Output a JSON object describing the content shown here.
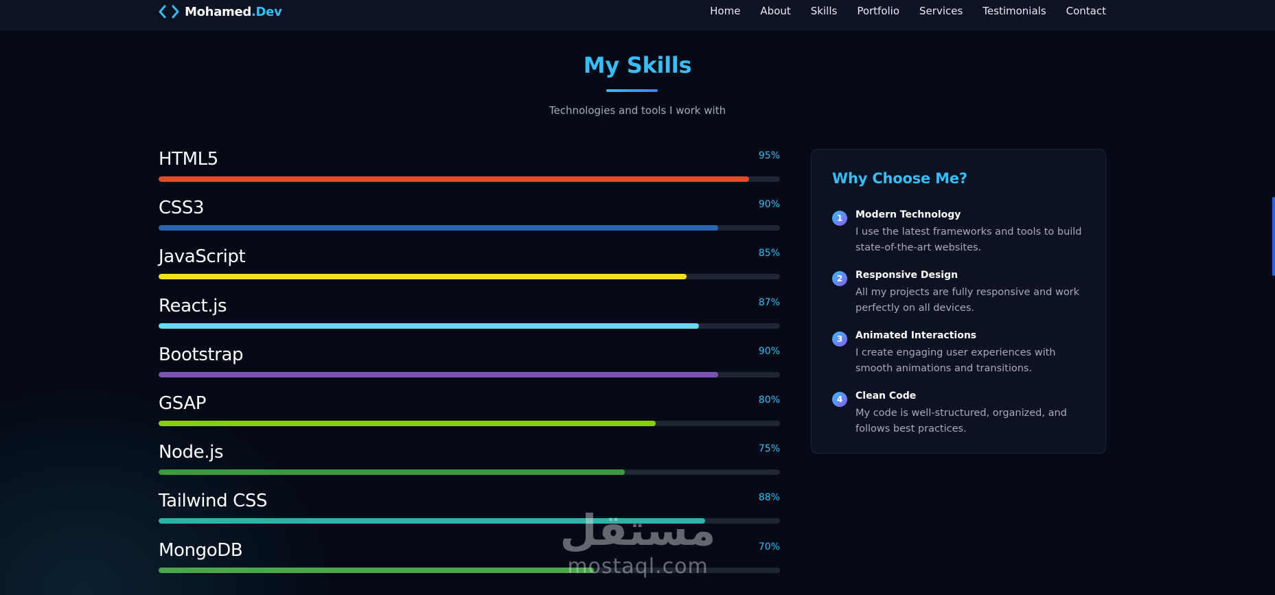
{
  "navbar": {
    "logo": {
      "name": "Mohamed",
      "accent": ".Dev",
      "icon": "code-brackets-icon"
    },
    "links": [
      "Home",
      "About",
      "Skills",
      "Portfolio",
      "Services",
      "Testimonials",
      "Contact"
    ]
  },
  "section": {
    "title": "My Skills",
    "subtitle": "Technologies and tools I work with"
  },
  "skills": [
    {
      "name": "HTML5",
      "percent": "95%",
      "level": 95,
      "color": "#e34c26"
    },
    {
      "name": "CSS3",
      "percent": "90%",
      "level": 90,
      "color": "#2965b0"
    },
    {
      "name": "JavaScript",
      "percent": "85%",
      "level": 85,
      "color": "#f7df1e"
    },
    {
      "name": "React.js",
      "percent": "87%",
      "level": 87,
      "color": "#61dafb"
    },
    {
      "name": "Bootstrap",
      "percent": "90%",
      "level": 90,
      "color": "#7952b3"
    },
    {
      "name": "GSAP",
      "percent": "80%",
      "level": 80,
      "color": "#88ce02"
    },
    {
      "name": "Node.js",
      "percent": "75%",
      "level": 75,
      "color": "#3c9a3c"
    },
    {
      "name": "Tailwind CSS",
      "percent": "88%",
      "level": 88,
      "color": "#2bb3a6"
    },
    {
      "name": "MongoDB",
      "percent": "70%",
      "level": 70,
      "color": "#4ca64c"
    }
  ],
  "why": {
    "title": "Why Choose Me?",
    "reasons": [
      {
        "num": "1",
        "title": "Modern Technology",
        "desc": "I use the latest frameworks and tools to build state-of-the-art websites."
      },
      {
        "num": "2",
        "title": "Responsive Design",
        "desc": "All my projects are fully responsive and work perfectly on all devices."
      },
      {
        "num": "3",
        "title": "Animated Interactions",
        "desc": "I create engaging user experiences with smooth animations and transitions."
      },
      {
        "num": "4",
        "title": "Clean Code",
        "desc": "My code is well-structured, organized, and follows best practices."
      }
    ]
  },
  "watermark": {
    "arabic": "مستقل",
    "latin": "mostaql.com"
  },
  "colors": {
    "accent": "#38bdf8",
    "background": "#050a16"
  }
}
